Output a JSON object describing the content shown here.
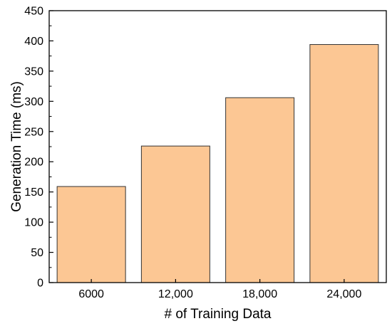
{
  "chart_data": {
    "type": "bar",
    "title": "",
    "xlabel": "# of Training Data",
    "ylabel": "Generation Time (ms)",
    "categories": [
      "6000",
      "12,000",
      "18,000",
      "24,000"
    ],
    "values": [
      159,
      226,
      306,
      394
    ],
    "ylim": [
      0,
      450
    ],
    "yticks": [
      0,
      50,
      100,
      150,
      200,
      250,
      300,
      350,
      400,
      450
    ],
    "grid": false,
    "legend": "none",
    "colors": {
      "bar_fill": "#FCC794",
      "bar_stroke": "#333333",
      "axis": "#000000"
    }
  }
}
